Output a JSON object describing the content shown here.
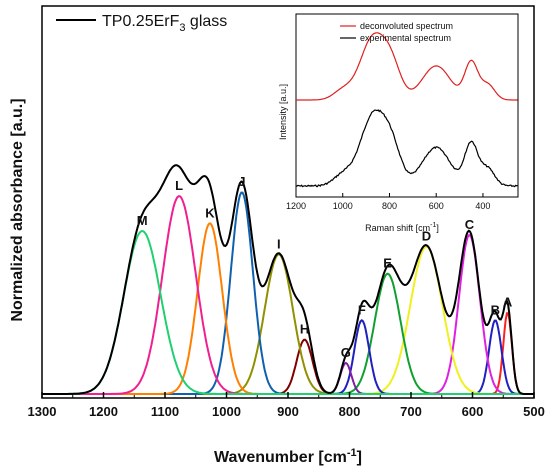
{
  "chart_data": {
    "type": "line",
    "xlabel": "Wavenumber [cm",
    "xlabel_sup": "-1",
    "xlabel_end": "]",
    "ylabel": "Normalized absorbance [a.u.]",
    "xlim": [
      1300,
      500
    ],
    "ylim": [
      0,
      1.0
    ],
    "x_ticks": [
      1300,
      1200,
      1100,
      1000,
      900,
      800,
      700,
      600,
      500
    ],
    "legend": {
      "text_main": "TP0.25ErF",
      "text_sub": "3",
      "text_end": " glass",
      "line_color": "#000000",
      "position": "top-left"
    },
    "envelope": {
      "color": "#000000"
    },
    "peaks": [
      {
        "label": "A",
        "center": 543,
        "height": 0.21,
        "sigma": 7,
        "color": "#ff2020"
      },
      {
        "label": "B",
        "center": 563,
        "height": 0.19,
        "sigma": 10,
        "color": "#2020c0"
      },
      {
        "label": "C",
        "center": 605,
        "height": 0.41,
        "sigma": 17,
        "color": "#e020e0"
      },
      {
        "label": "D",
        "center": 675,
        "height": 0.38,
        "sigma": 26,
        "color": "#f0f020"
      },
      {
        "label": "E",
        "center": 738,
        "height": 0.31,
        "sigma": 21,
        "color": "#10a030"
      },
      {
        "label": "F",
        "center": 780,
        "height": 0.19,
        "sigma": 12,
        "color": "#2020c0"
      },
      {
        "label": "G",
        "center": 806,
        "height": 0.08,
        "sigma": 9,
        "color": "#8020a0"
      },
      {
        "label": "H",
        "center": 873,
        "height": 0.14,
        "sigma": 13,
        "color": "#800000"
      },
      {
        "label": "I",
        "center": 915,
        "height": 0.36,
        "sigma": 23,
        "color": "#909000"
      },
      {
        "label": "J",
        "center": 975,
        "height": 0.52,
        "sigma": 18,
        "color": "#1060b0"
      },
      {
        "label": "K",
        "center": 1027,
        "height": 0.44,
        "sigma": 20,
        "color": "#ff8000"
      },
      {
        "label": "L",
        "center": 1077,
        "height": 0.51,
        "sigma": 27,
        "color": "#f02090"
      },
      {
        "label": "M",
        "center": 1137,
        "height": 0.42,
        "sigma": 30,
        "color": "#20d070"
      }
    ],
    "inset": {
      "xlabel": "Raman shift [cm",
      "xlabel_sup": "-1",
      "xlabel_end": "]",
      "ylabel": "Intensity [a.u.]",
      "xlim": [
        1200,
        250
      ],
      "x_ticks": [
        1200,
        1000,
        800,
        600,
        400
      ],
      "legend": [
        {
          "name": "deconvoluted spectrum",
          "color": "#e02020"
        },
        {
          "name": "experimental spectrum",
          "color": "#000000"
        }
      ]
    }
  }
}
